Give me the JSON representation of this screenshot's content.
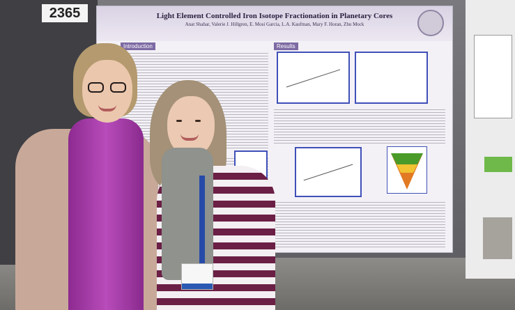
{
  "booth": {
    "board_number": "2365"
  },
  "poster": {
    "title": "Light Element Controlled Iron Isotope Fractionation in Planetary Cores",
    "authors": "Anat Shahar, Valerie J. Hillgren, E. Mosi Garcia, L.A. Kaufman, Mary F. Horan, Zhu Mock",
    "sections": {
      "introduction": "Introduction",
      "results": "Results"
    }
  },
  "colors": {
    "poster_accent": "#7d6aa3",
    "figure_border": "#3f4fb8",
    "scarf_purple": "#a13aa5",
    "lanyard_blue": "#264aa8"
  }
}
